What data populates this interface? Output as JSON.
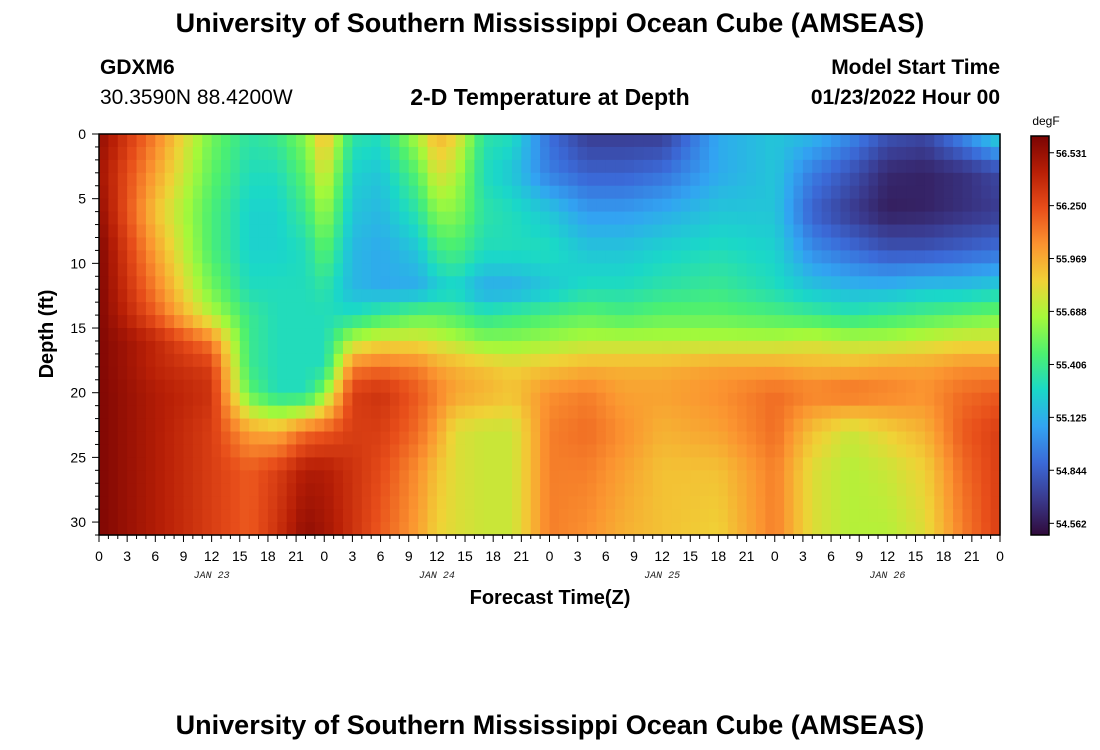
{
  "header": {
    "title": "University of Southern Mississippi Ocean Cube (AMSEAS)",
    "station_id": "GDXM6",
    "station_coords": "30.3590N  88.4200W",
    "plot_title": "2-D Temperature at Depth",
    "model_start_label": "Model Start Time",
    "model_start_value": "01/23/2022 Hour 00"
  },
  "footer": {
    "title": "University of Southern Mississippi Ocean Cube (AMSEAS)"
  },
  "colors": {
    "palette": [
      "#300a3a",
      "#3a3a8e",
      "#3b6ad8",
      "#32a4f2",
      "#1ad8c8",
      "#4cf070",
      "#a4f93a",
      "#f0d236",
      "#fb9430",
      "#e84e1a",
      "#b81f06",
      "#7a0403"
    ]
  },
  "chart_data": {
    "type": "heatmap",
    "xlabel": "Forecast Time(Z)",
    "ylabel": "Depth (ft)",
    "colorbar_unit": "degF",
    "colorbar_ticks": [
      56.531,
      56.25,
      55.969,
      55.688,
      55.406,
      55.125,
      54.844,
      54.562
    ],
    "value_range": [
      54.5,
      56.62
    ],
    "x_tick_labels": [
      "0",
      "3",
      "6",
      "9",
      "12",
      "15",
      "18",
      "21",
      "0",
      "3",
      "6",
      "9",
      "12",
      "15",
      "18",
      "21",
      "0",
      "3",
      "6",
      "9",
      "12",
      "15",
      "18",
      "21",
      "0",
      "3",
      "6",
      "9",
      "12",
      "15",
      "18",
      "21",
      "0"
    ],
    "date_labels": [
      {
        "label": "JAN 23",
        "hour": 12
      },
      {
        "label": "JAN 24",
        "hour": 36
      },
      {
        "label": "JAN 25",
        "hour": 60
      },
      {
        "label": "JAN 26",
        "hour": 84
      }
    ],
    "y_ticks": [
      0,
      5,
      10,
      15,
      20,
      25,
      30
    ],
    "xlim": [
      0,
      96
    ],
    "ylim": [
      0,
      31
    ],
    "x_hours": [
      0,
      6,
      12,
      16,
      19,
      22,
      24,
      27,
      30,
      34,
      36,
      38,
      41,
      44,
      48,
      52,
      56,
      60,
      66,
      72,
      76,
      80,
      84,
      88,
      92,
      96
    ],
    "depths_ft": [
      0,
      3,
      6,
      9,
      12,
      14,
      16,
      18,
      20,
      23,
      26,
      31
    ],
    "temperature_degF": [
      [
        56.55,
        56.1,
        55.55,
        55.35,
        55.4,
        55.6,
        55.95,
        55.35,
        55.3,
        55.7,
        55.95,
        55.85,
        55.35,
        55.3,
        54.9,
        54.7,
        54.7,
        54.7,
        55.1,
        55.2,
        55.15,
        55.0,
        54.8,
        54.75,
        55.0,
        55.3
      ],
      [
        56.5,
        56.0,
        55.5,
        55.3,
        55.3,
        55.5,
        55.8,
        55.25,
        55.2,
        55.5,
        55.8,
        55.7,
        55.3,
        55.2,
        54.95,
        54.85,
        54.85,
        54.9,
        55.1,
        55.2,
        54.95,
        54.8,
        54.62,
        54.6,
        54.65,
        54.75
      ],
      [
        56.55,
        55.9,
        55.45,
        55.25,
        55.25,
        55.4,
        55.65,
        55.2,
        55.15,
        55.35,
        55.6,
        55.6,
        55.35,
        55.3,
        55.2,
        55.05,
        55.05,
        55.1,
        55.2,
        55.2,
        54.85,
        54.7,
        54.58,
        54.6,
        54.65,
        54.7
      ],
      [
        56.6,
        56.0,
        55.45,
        55.25,
        55.25,
        55.3,
        55.5,
        55.15,
        55.1,
        55.2,
        55.4,
        55.45,
        55.3,
        55.3,
        55.3,
        55.2,
        55.2,
        55.25,
        55.3,
        55.25,
        55.0,
        54.9,
        54.8,
        54.8,
        54.85,
        54.9
      ],
      [
        56.6,
        56.1,
        55.55,
        55.3,
        55.3,
        55.3,
        55.35,
        55.15,
        55.1,
        55.1,
        55.2,
        55.25,
        55.1,
        55.1,
        55.2,
        55.3,
        55.3,
        55.35,
        55.4,
        55.3,
        55.2,
        55.15,
        55.15,
        55.2,
        55.2,
        55.25
      ],
      [
        56.6,
        56.2,
        55.7,
        55.4,
        55.3,
        55.3,
        55.3,
        55.3,
        55.4,
        55.5,
        55.5,
        55.45,
        55.35,
        55.4,
        55.45,
        55.5,
        55.45,
        55.5,
        55.5,
        55.45,
        55.4,
        55.35,
        55.4,
        55.45,
        55.5,
        55.55
      ],
      [
        56.6,
        56.4,
        56.1,
        55.4,
        55.3,
        55.3,
        55.3,
        55.7,
        55.8,
        55.8,
        55.75,
        55.7,
        55.6,
        55.6,
        55.65,
        55.7,
        55.7,
        55.7,
        55.7,
        55.7,
        55.75,
        55.7,
        55.7,
        55.75,
        55.8,
        55.8
      ],
      [
        56.6,
        56.4,
        56.3,
        55.4,
        55.3,
        55.3,
        55.3,
        56.1,
        56.15,
        56.1,
        56.0,
        55.95,
        55.9,
        55.85,
        55.9,
        55.95,
        55.95,
        55.95,
        56.0,
        56.0,
        55.95,
        55.95,
        56.0,
        56.0,
        56.05,
        56.05
      ],
      [
        56.6,
        56.45,
        56.35,
        55.5,
        55.3,
        55.3,
        55.6,
        56.3,
        56.35,
        56.2,
        56.1,
        56.0,
        55.95,
        55.9,
        56.05,
        56.1,
        56.0,
        56.0,
        56.05,
        56.15,
        56.1,
        56.15,
        56.1,
        56.05,
        56.15,
        56.2
      ],
      [
        56.6,
        56.45,
        56.3,
        56.0,
        55.95,
        56.15,
        56.2,
        56.3,
        56.3,
        56.15,
        56.0,
        55.8,
        55.75,
        55.75,
        56.1,
        56.15,
        56.05,
        55.95,
        56.0,
        56.15,
        55.9,
        55.75,
        55.85,
        55.95,
        56.2,
        56.3
      ],
      [
        56.6,
        56.45,
        56.3,
        56.2,
        56.3,
        56.45,
        56.45,
        56.35,
        56.25,
        56.05,
        55.9,
        55.8,
        55.75,
        55.75,
        56.1,
        56.1,
        56.0,
        55.9,
        55.9,
        56.1,
        55.8,
        55.7,
        55.75,
        55.85,
        56.15,
        56.3
      ],
      [
        56.6,
        56.45,
        56.3,
        56.2,
        56.35,
        56.55,
        56.5,
        56.35,
        56.2,
        56.0,
        55.85,
        55.8,
        55.75,
        55.75,
        56.1,
        56.05,
        55.95,
        55.9,
        55.85,
        56.1,
        55.8,
        55.7,
        55.7,
        55.8,
        56.1,
        56.3
      ]
    ]
  }
}
